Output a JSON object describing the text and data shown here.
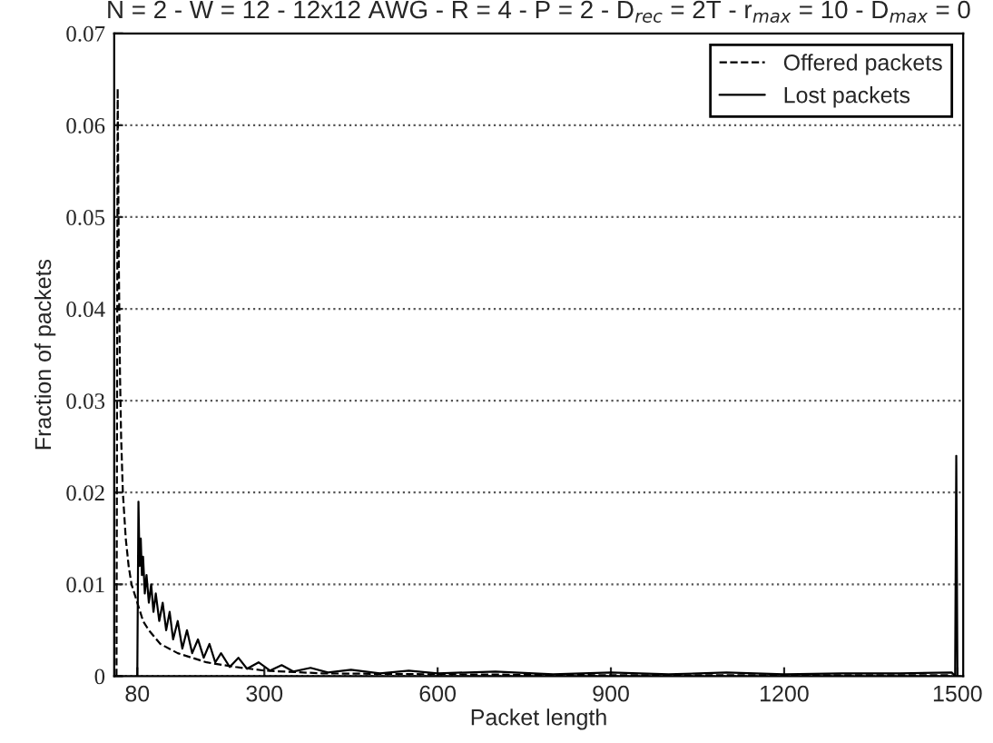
{
  "chart_data": {
    "type": "line",
    "title": "N = 2 - W = 12 - 12x12 AWG - R = 4 - P = 2 - D$_{rec}$ = 2T - r$_{max}$ = 10 - D$_{max}$ = 0",
    "xlabel": "Packet length",
    "ylabel": "Fraction of packets",
    "xlim": [
      40,
      1510
    ],
    "xticks": [
      80,
      300,
      600,
      900,
      1200,
      1500
    ],
    "ylim": [
      0,
      0.07
    ],
    "yticks": [
      0,
      0.01,
      0.02,
      0.03,
      0.04,
      0.05,
      0.06,
      0.07
    ],
    "grid": "y",
    "legend": "top right",
    "series": [
      {
        "name": "Offered packets",
        "color": "#000000",
        "line_style": "dashed",
        "x": [
          44,
          46,
          48,
          50,
          52,
          55,
          60,
          65,
          70,
          80,
          90,
          100,
          120,
          150,
          200,
          250,
          300,
          400,
          600,
          900,
          1200,
          1490
        ],
        "values": [
          0,
          0.064,
          0.045,
          0.033,
          0.026,
          0.02,
          0.015,
          0.012,
          0.01,
          0.008,
          0.006,
          0.005,
          0.0035,
          0.0025,
          0.0015,
          0.001,
          0.0006,
          0.0003,
          0.0002,
          0.0001,
          0.0001,
          0.0001
        ]
      },
      {
        "name": "Lost packets",
        "color": "#000000",
        "line_style": "solid",
        "x": [
          80,
          82,
          84,
          86,
          88,
          90,
          93,
          96,
          100,
          104,
          108,
          112,
          118,
          124,
          130,
          136,
          142,
          150,
          158,
          166,
          175,
          185,
          195,
          205,
          215,
          225,
          240,
          255,
          270,
          290,
          310,
          330,
          350,
          380,
          410,
          450,
          500,
          550,
          600,
          700,
          800,
          900,
          1000,
          1100,
          1200,
          1300,
          1400,
          1490,
          1496,
          1498,
          1500
        ],
        "values": [
          0,
          0.019,
          0.012,
          0.015,
          0.011,
          0.013,
          0.009,
          0.011,
          0.008,
          0.01,
          0.007,
          0.009,
          0.006,
          0.008,
          0.005,
          0.007,
          0.004,
          0.006,
          0.003,
          0.005,
          0.0025,
          0.004,
          0.002,
          0.0035,
          0.0015,
          0.0025,
          0.001,
          0.002,
          0.0008,
          0.0015,
          0.0006,
          0.0012,
          0.0005,
          0.0009,
          0.0004,
          0.0007,
          0.0003,
          0.0006,
          0.0003,
          0.0005,
          0.0002,
          0.0004,
          0.0002,
          0.0004,
          0.0002,
          0.0003,
          0.0003,
          0.0004,
          0,
          0.024,
          0
        ]
      }
    ]
  }
}
